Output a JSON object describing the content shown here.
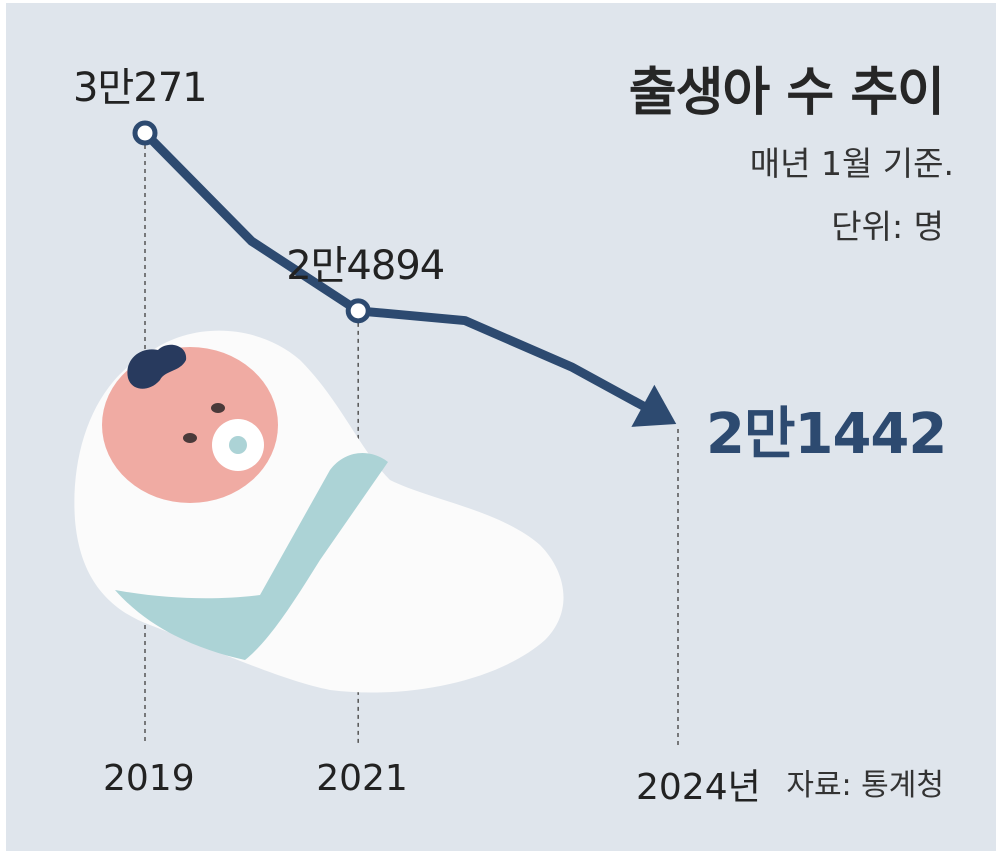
{
  "header": {
    "title": "출생아 수 추이",
    "subtitle": "매년 1월 기준.",
    "unit": "단위: 명"
  },
  "source": "자료: 통계청",
  "colors": {
    "background": "#dfe5ec",
    "line": "#2d4a70",
    "highlight_text": "#2d4a70",
    "blanket": "#fbfbfb",
    "band": "#acd3d6",
    "skin": "#f0aba3",
    "hair": "#283a5e"
  },
  "chart_data": {
    "type": "line",
    "title": "출생아 수 추이",
    "subtitle": "매년 1월 기준.",
    "unit": "단위: 명",
    "x": [
      2019,
      2020,
      2021,
      2022,
      2023,
      2024
    ],
    "y": [
      30271,
      27000,
      24894,
      24600,
      23200,
      21442
    ],
    "ylim": [
      20000,
      31000
    ],
    "grid": false,
    "labeled_points": [
      {
        "x": 2019,
        "label": "3만271"
      },
      {
        "x": 2021,
        "label": "2만4894"
      },
      {
        "x": 2024,
        "label": "2만1442"
      }
    ],
    "x_tick_labels": [
      "2019",
      "2021",
      "2024년"
    ],
    "source": "자료: 통계청"
  }
}
